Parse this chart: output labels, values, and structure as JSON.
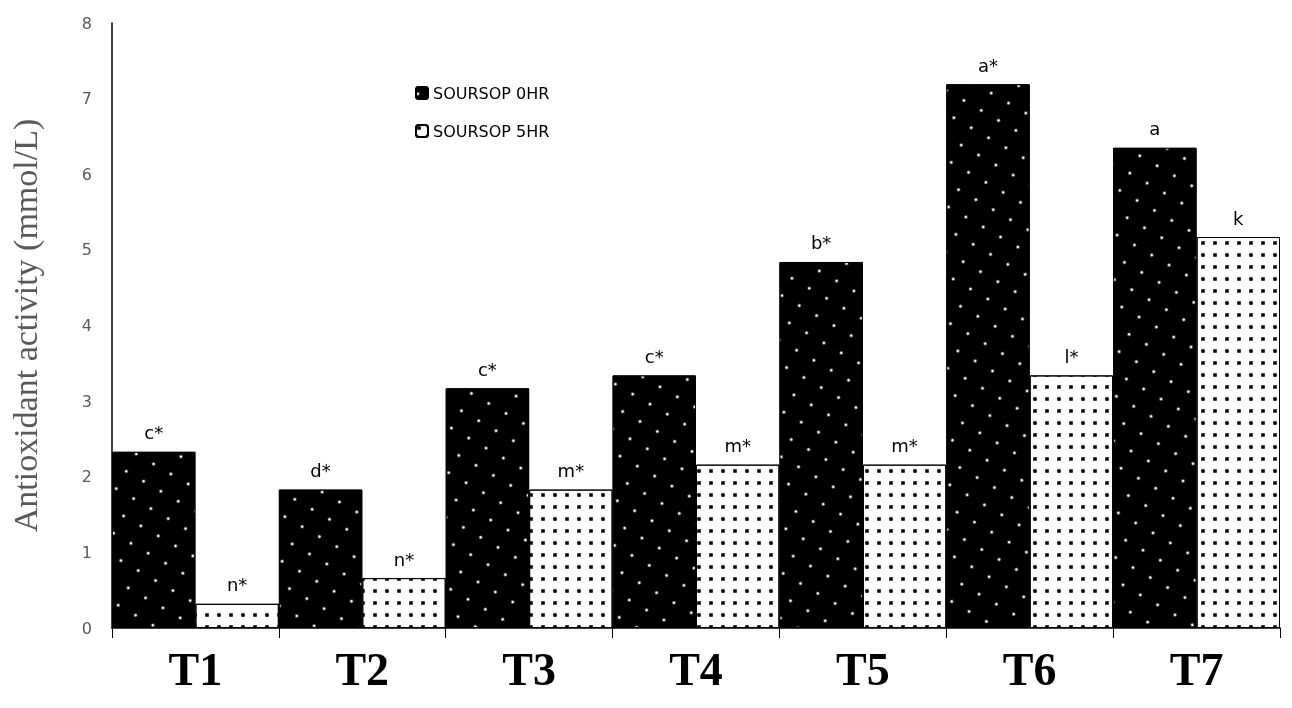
{
  "chart_data": {
    "type": "bar",
    "ylabel": "Antioxidant activity (mmol/L)",
    "categories": [
      "T1",
      "T2",
      "T3",
      "T4",
      "T5",
      "T6",
      "T7"
    ],
    "series": [
      {
        "name": "SOURSOP 0HR",
        "color": "#000000",
        "values": [
          2.33,
          1.83,
          3.17,
          3.34,
          4.84,
          7.19,
          6.35
        ]
      },
      {
        "name": "SOURSOP 5HR",
        "color": "#ffffff",
        "values": [
          0.32,
          0.66,
          1.83,
          2.16,
          2.16,
          3.34,
          5.17
        ]
      }
    ],
    "ylim": [
      0,
      8
    ],
    "yticks": [
      0,
      1,
      2,
      3,
      4,
      5,
      6,
      7,
      8
    ],
    "grid": false,
    "legend": "top",
    "annotations": [
      {
        "text": "c*",
        "x": "T1",
        "y": 2.33
      },
      {
        "text": "n*",
        "x": "T1",
        "y": 0.32
      },
      {
        "text": "d*",
        "x": "T2",
        "y": 1.83
      },
      {
        "text": "n*",
        "x": "T2",
        "y": 0.66
      },
      {
        "text": "c*",
        "x": "T3",
        "y": 3.17
      },
      {
        "text": "m*",
        "x": "T3",
        "y": 1.83
      },
      {
        "text": "c*",
        "x": "T4",
        "y": 3.34
      },
      {
        "text": "m*",
        "x": "T4",
        "y": 2.16
      },
      {
        "text": "b*",
        "x": "T5",
        "y": 4.84
      },
      {
        "text": "m*",
        "x": "T5",
        "y": 2.16
      },
      {
        "text": "a*",
        "x": "T6",
        "y": 7.19
      },
      {
        "text": "l*",
        "x": "T6",
        "y": 3.34
      },
      {
        "text": "a",
        "x": "T7",
        "y": 6.35
      },
      {
        "text": "k",
        "x": "T7",
        "y": 5.17
      }
    ]
  }
}
